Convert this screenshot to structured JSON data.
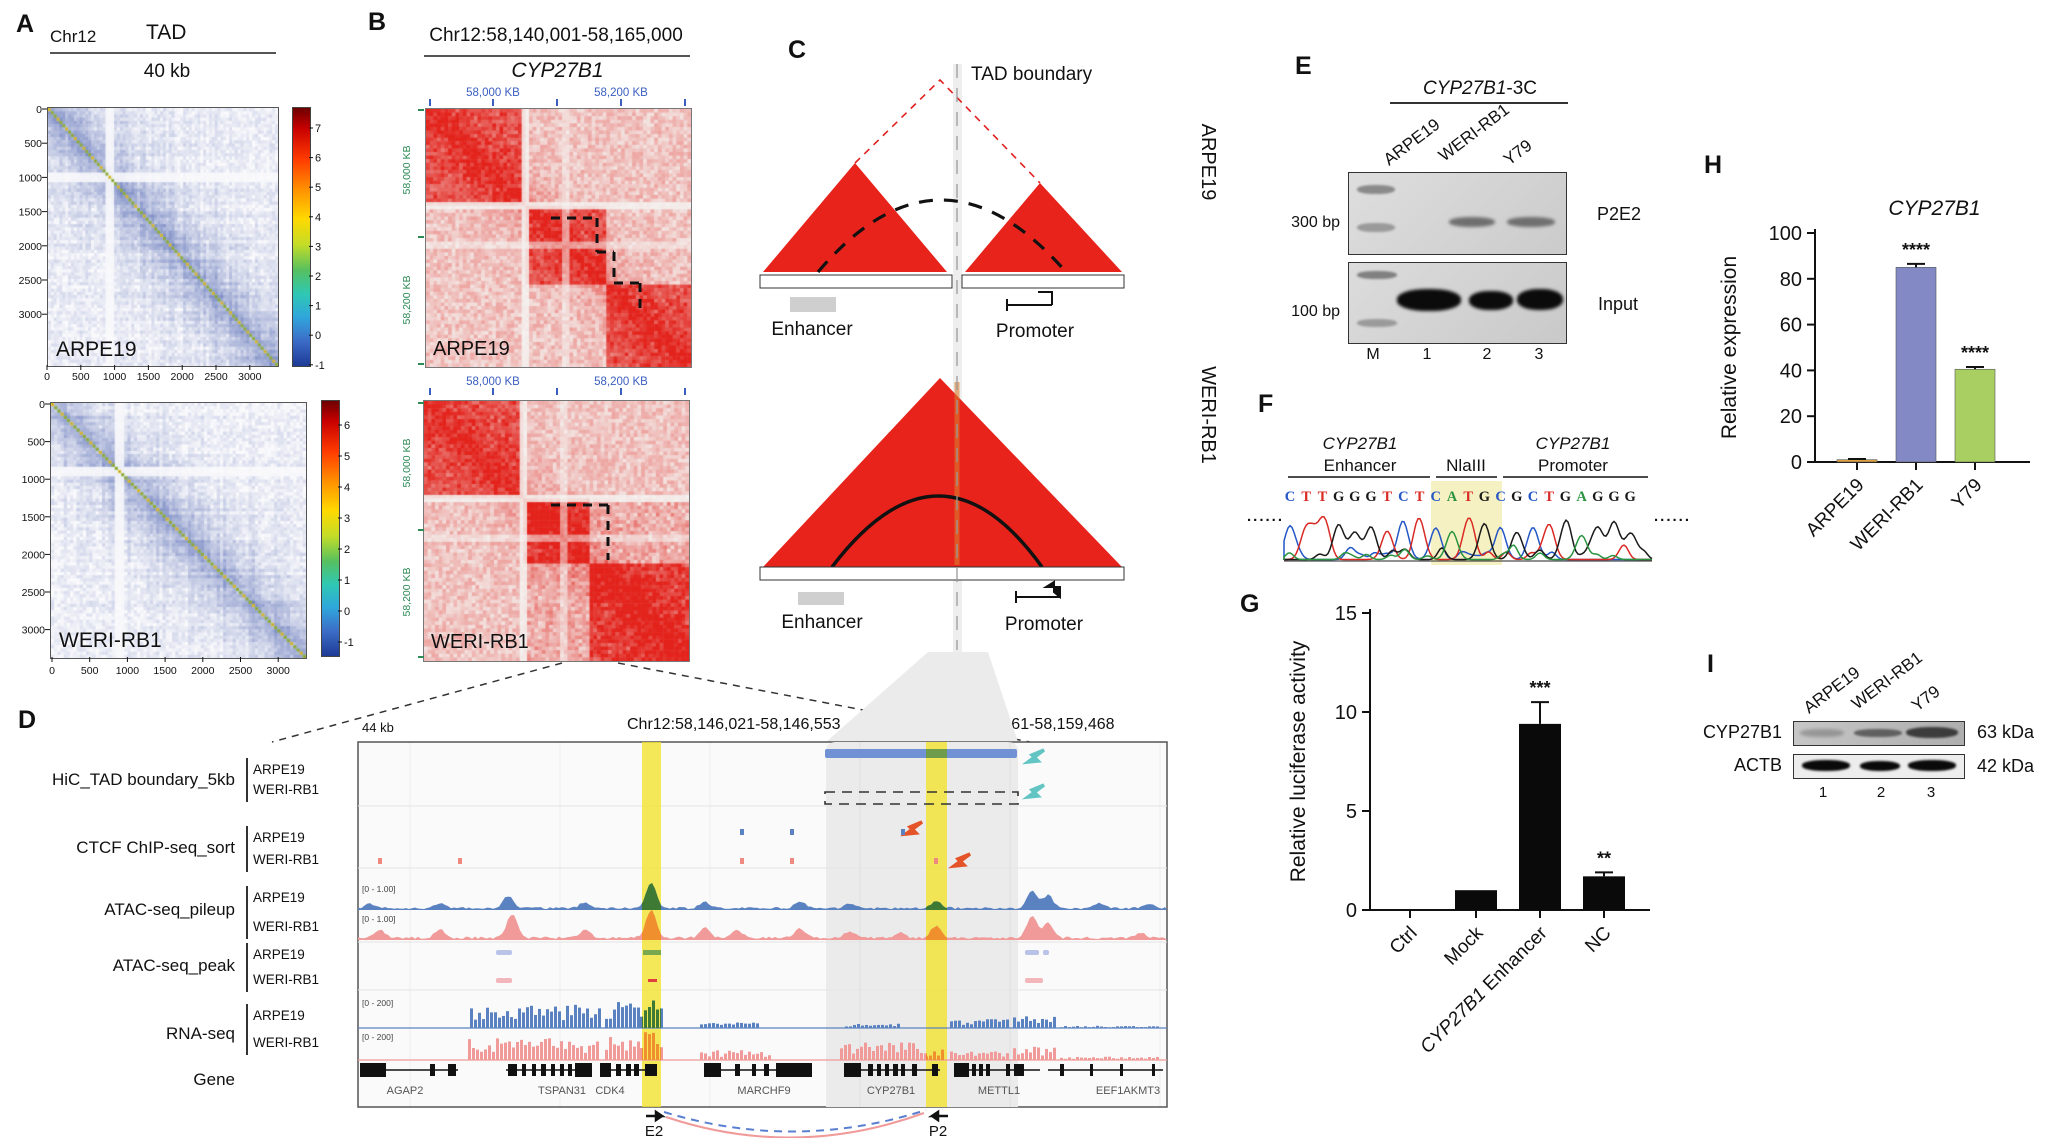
{
  "figure": {
    "panel_a": {
      "label": "A",
      "chr": "Chr12",
      "tad": "TAD",
      "resolution": "40 kb",
      "matrices": [
        {
          "name": "ARPE19",
          "axis_ticks": [
            "0",
            "500",
            "1000",
            "1500",
            "2000",
            "2500",
            "3000"
          ],
          "colorbar_ticks": [
            "7",
            "6",
            "5",
            "4",
            "3",
            "2",
            "1",
            "0",
            "-1"
          ]
        },
        {
          "name": "WERI-RB1",
          "axis_ticks": [
            "0",
            "500",
            "1000",
            "1500",
            "2000",
            "2500",
            "3000"
          ],
          "colorbar_ticks": [
            "6",
            "5",
            "4",
            "3",
            "2",
            "1",
            "0",
            "-1"
          ]
        }
      ]
    },
    "panel_b": {
      "label": "B",
      "title": "Chr12:58,140,001-58,165,000",
      "gene": "CYP27B1",
      "ruler_ticks": [
        "58,000 KB",
        "58,200 KB"
      ],
      "side_ticks": [
        "58,000 KB",
        "58,200 KB"
      ],
      "matrices": [
        {
          "name": "ARPE19"
        },
        {
          "name": "WERI-RB1"
        }
      ]
    },
    "panel_c": {
      "label": "C",
      "boundary": "TAD boundary",
      "rows": [
        {
          "cell": "ARPE19",
          "enhancer": "Enhancer",
          "promoter": "Promoter"
        },
        {
          "cell": "WERI-RB1",
          "enhancer": "Enhancer",
          "promoter": "Promoter"
        }
      ]
    },
    "panel_d": {
      "label": "D",
      "scale": "44 kb",
      "coord_left": "Chr12:58,146,021-58,146,553",
      "coord_right": "Chr12:58,158,161-58,159,468",
      "tracks": [
        {
          "name": "HiC_TAD boundary_5kb",
          "rows": [
            "ARPE19",
            "WERI-RB1"
          ]
        },
        {
          "name": "CTCF ChIP-seq_sort",
          "rows": [
            "ARPE19",
            "WERI-RB1"
          ]
        },
        {
          "name": "ATAC-seq_pileup",
          "rows": [
            "ARPE19",
            "WERI-RB1"
          ],
          "scale": "[0 - 1.00]"
        },
        {
          "name": "ATAC-seq_peak",
          "rows": [
            "ARPE19",
            "WERI-RB1"
          ]
        },
        {
          "name": "RNA-seq",
          "rows": [
            "ARPE19",
            "WERI-RB1"
          ],
          "scale": "[0 - 200]"
        }
      ],
      "gene_row_label": "Gene",
      "genes": [
        "AGAP2",
        "TSPAN31",
        "CDK4",
        "MARCHF9",
        "CYP27B1",
        "METTL1",
        "EEF1AKMT3"
      ],
      "anchors": {
        "enhancer": "E2",
        "promoter": "P2"
      }
    },
    "panel_e": {
      "label": "E",
      "title_gene": "CYP27B1",
      "title_suffix": "-3C",
      "lanes": [
        "ARPE19",
        "WERI-RB1",
        "Y79"
      ],
      "size_top": "300 bp",
      "size_bottom": "100 bp",
      "blot_top": "P2E2",
      "blot_bottom": "Input",
      "lane_row": [
        "M",
        "1",
        "2",
        "3"
      ]
    },
    "panel_f": {
      "label": "F",
      "region_left_gene": "CYP27B1",
      "region_left_part": "Enhancer",
      "region_mid_part": "NlaIII",
      "region_right_gene": "CYP27B1",
      "region_right_part": "Promoter",
      "sequence": "CTTGGGTCTCATGCGCTGAGGG",
      "highlight": "CATG",
      "dots": "......"
    },
    "panel_g": {
      "label": "G"
    },
    "panel_h": {
      "label": "H"
    },
    "panel_i": {
      "label": "I",
      "lanes": [
        "ARPE19",
        "WERI-RB1",
        "Y79"
      ],
      "blots": [
        {
          "protein": "CYP27B1",
          "size": "63 kDa"
        },
        {
          "protein": "ACTB",
          "size": "42 kDa"
        }
      ],
      "lane_numbers": [
        "1",
        "2",
        "3"
      ]
    }
  },
  "chart_data": [
    {
      "type": "heatmap",
      "id": "A1",
      "cell": "ARPE19",
      "region": "Chr12",
      "annotation": "TAD",
      "resolution": "40 kb",
      "axis_ticks": [
        0,
        500,
        1000,
        1500,
        2000,
        2500,
        3000
      ],
      "colorbar_range": [
        -1,
        7
      ],
      "palette": "jet"
    },
    {
      "type": "heatmap",
      "id": "A2",
      "cell": "WERI-RB1",
      "region": "Chr12",
      "annotation": "TAD",
      "resolution": "40 kb",
      "axis_ticks": [
        0,
        500,
        1000,
        1500,
        2000,
        2500,
        3000
      ],
      "colorbar_range": [
        -1,
        6
      ],
      "palette": "jet"
    },
    {
      "type": "heatmap",
      "id": "B1",
      "cell": "ARPE19",
      "region": "Chr12:58,140,001-58,165,000",
      "gene": "CYP27B1",
      "axis_tick_labels": [
        "58,000 KB",
        "58,200 KB"
      ],
      "palette": "white-red",
      "note": "dashed sub-TAD boundary present"
    },
    {
      "type": "heatmap",
      "id": "B2",
      "cell": "WERI-RB1",
      "region": "Chr12:58,140,001-58,165,000",
      "gene": "CYP27B1",
      "axis_tick_labels": [
        "58,000 KB",
        "58,200 KB"
      ],
      "palette": "white-red",
      "note": "dashed boundary lost, TADs merged"
    },
    {
      "type": "bar",
      "id": "G",
      "title": "",
      "ylabel": "Relative luciferase activity",
      "categories": [
        "Ctrl",
        "Mock",
        "CYP27B1 Enhancer",
        "NC"
      ],
      "values": [
        0,
        1.0,
        9.4,
        1.7
      ],
      "errors": [
        0,
        0,
        1.1,
        0.2
      ],
      "significance": [
        "",
        "",
        "***",
        "**"
      ],
      "ylim": [
        0,
        15
      ],
      "yticks": [
        0,
        5,
        10,
        15
      ],
      "bar_color": "#0a0a0a"
    },
    {
      "type": "bar",
      "id": "H",
      "title": "CYP27B1",
      "ylabel": "Relative expression",
      "categories": [
        "ARPE19",
        "WERI-RB1",
        "Y79"
      ],
      "values": [
        1,
        85,
        40.5
      ],
      "errors": [
        0.3,
        1.5,
        1.0
      ],
      "significance": [
        "",
        "****",
        "****"
      ],
      "ylim": [
        0,
        100
      ],
      "yticks": [
        0,
        20,
        40,
        60,
        80,
        100
      ],
      "bar_colors": [
        "#e2a23c",
        "#8289c4",
        "#a9cf62"
      ]
    }
  ],
  "colors": {
    "hic_red": "#e8231c",
    "track_blue": "#5b82c0",
    "track_pink": "#f09a99",
    "highlight_yellow": "#f2e230",
    "peak_green": "#3e7a33",
    "peak_orange": "#ef8f2e",
    "tad_bar_blue": "#7092d5",
    "teal_arrow": "#62c5c4",
    "red_arrow": "#e55328",
    "seq_C": "#2457c5",
    "seq_T": "#d92b25",
    "seq_G": "#1a1a1a",
    "seq_A": "#2a9440"
  }
}
